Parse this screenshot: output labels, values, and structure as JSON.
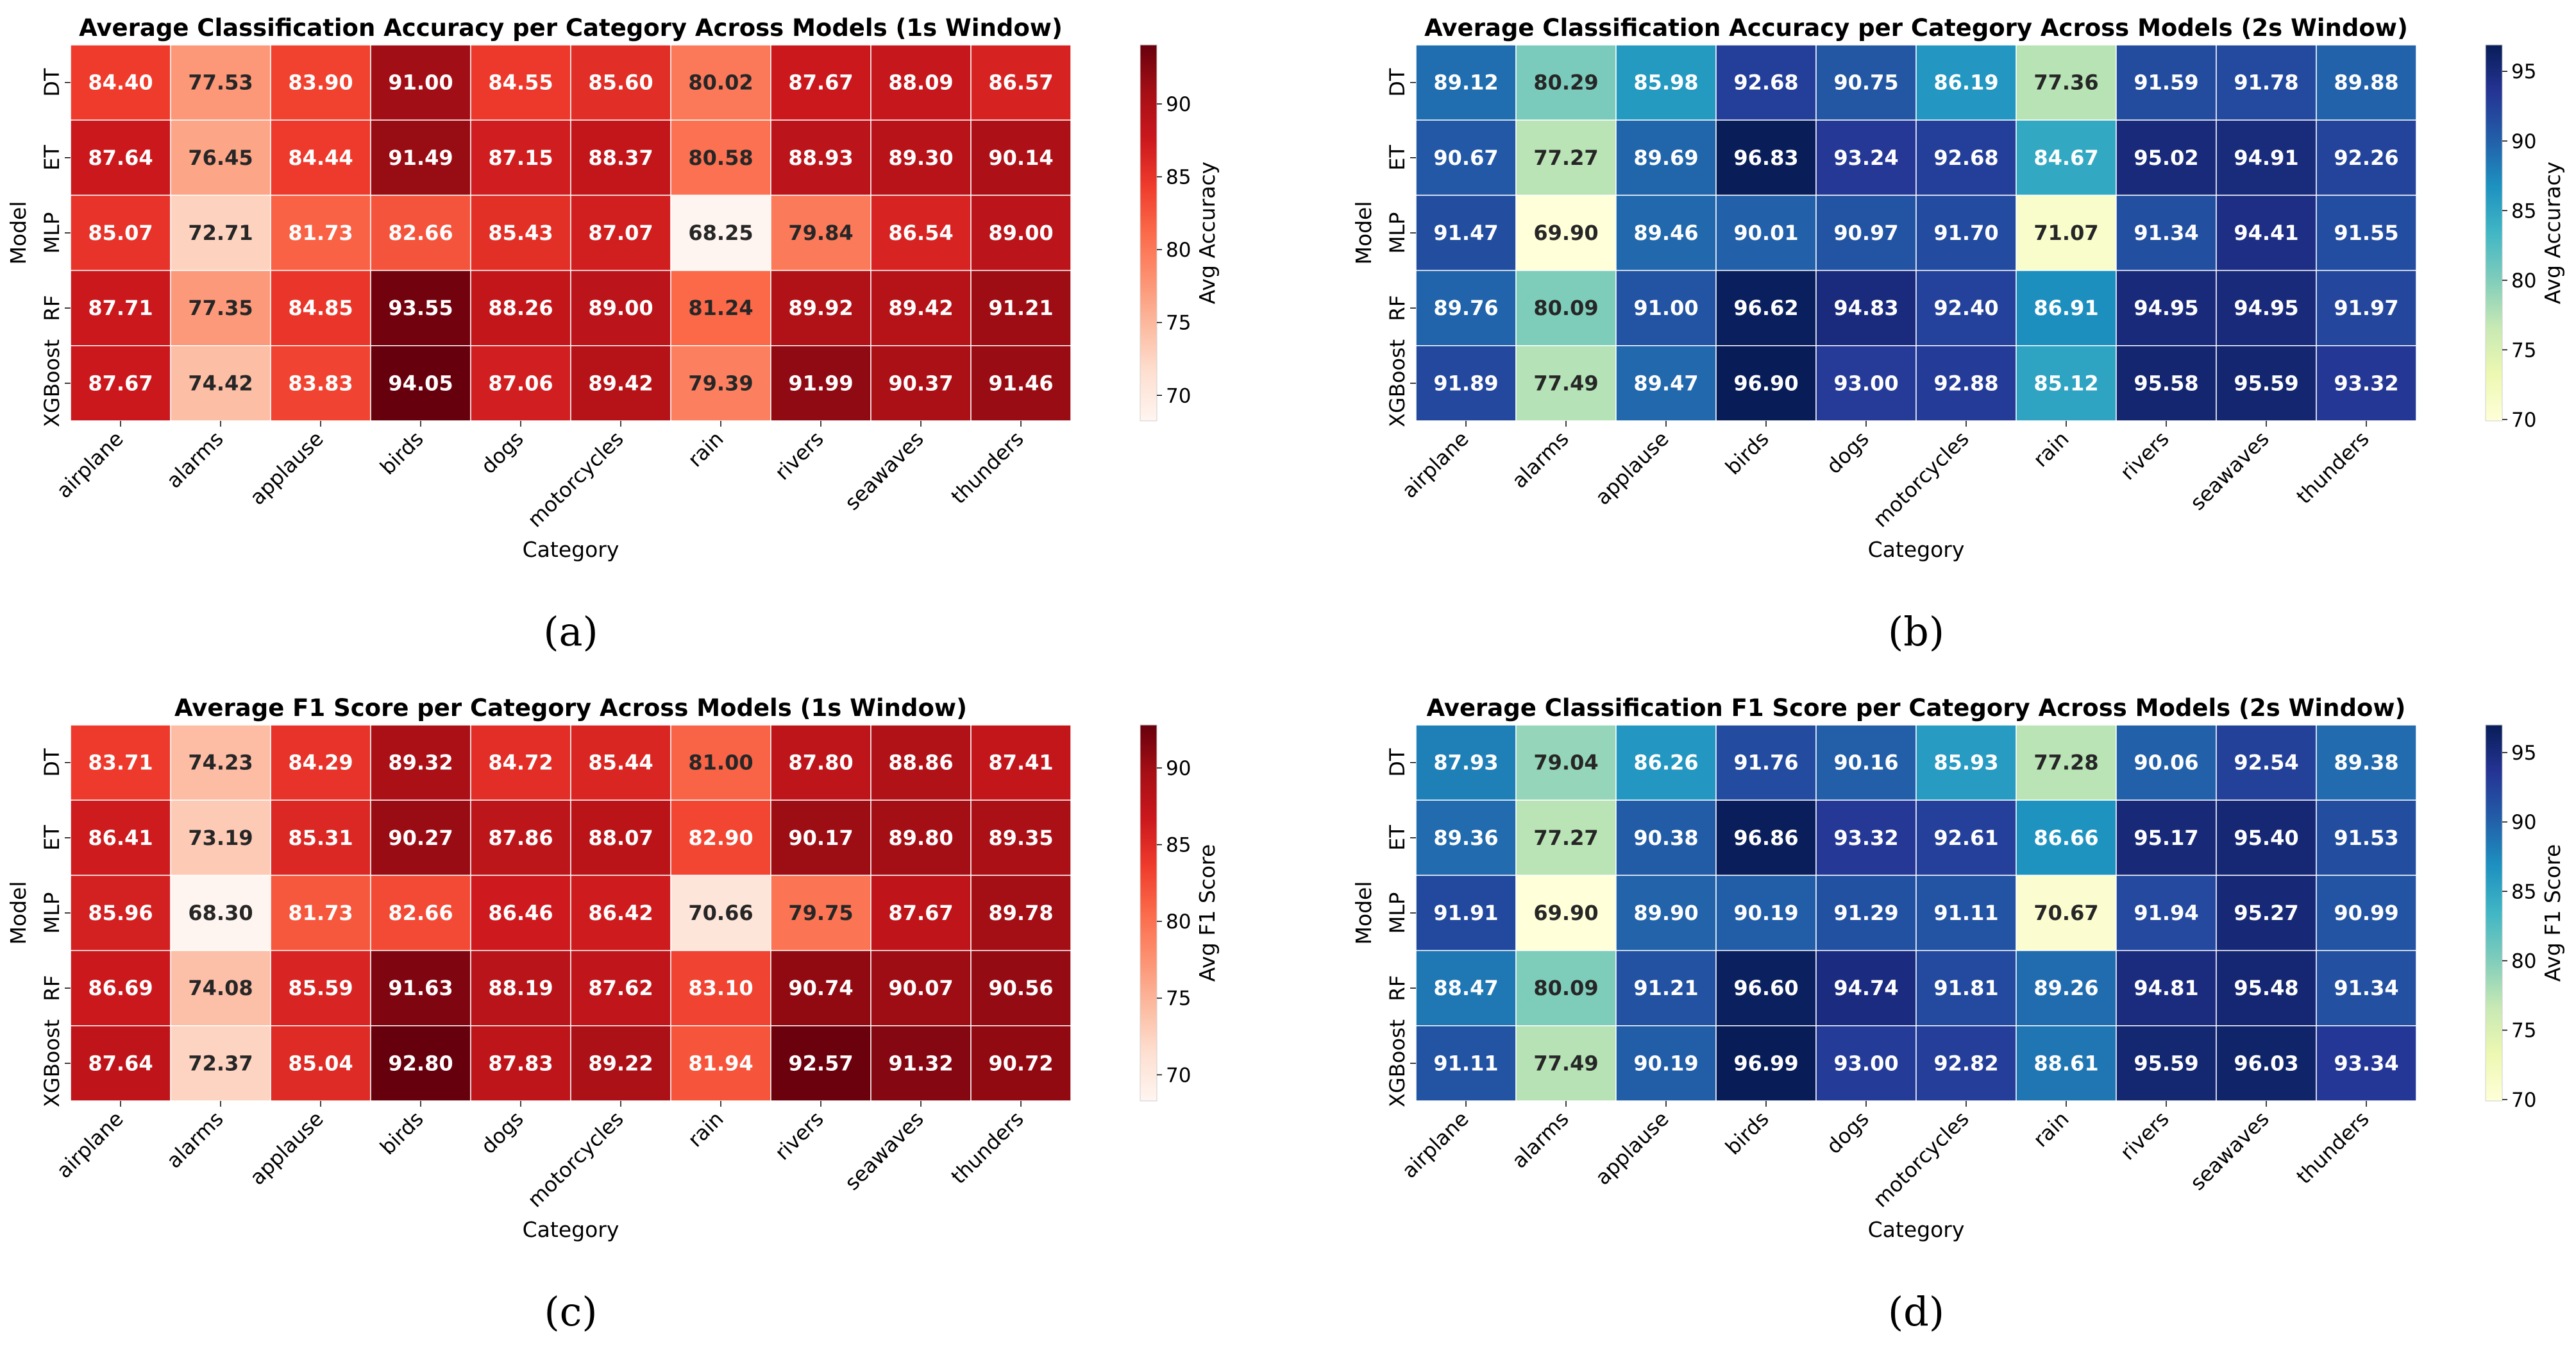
{
  "chart_data": [
    {
      "type": "heatmap",
      "panel_label": "(a)",
      "title": "Average Classification Accuracy per Category Across Models (1s Window)",
      "xlabel": "Category",
      "ylabel": "Model",
      "colorbar_label": "Avg Accuracy",
      "colormap": "Reds",
      "vmin": 68.25,
      "vmax": 94.05,
      "colorbar_ticks": [
        70,
        75,
        80,
        85,
        90
      ],
      "categories": [
        "airplane",
        "alarms",
        "applause",
        "birds",
        "dogs",
        "motorcycles",
        "rain",
        "rivers",
        "seawaves",
        "thunders"
      ],
      "models": [
        "DT",
        "ET",
        "MLP",
        "RF",
        "XGBoost"
      ],
      "values": [
        [
          84.4,
          77.53,
          83.9,
          91.0,
          84.55,
          85.6,
          80.02,
          87.67,
          88.09,
          86.57
        ],
        [
          87.64,
          76.45,
          84.44,
          91.49,
          87.15,
          88.37,
          80.58,
          88.93,
          89.3,
          90.14
        ],
        [
          85.07,
          72.71,
          81.73,
          82.66,
          85.43,
          87.07,
          68.25,
          79.84,
          86.54,
          89.0
        ],
        [
          87.71,
          77.35,
          84.85,
          93.55,
          88.26,
          89.0,
          81.24,
          89.92,
          89.42,
          91.21
        ],
        [
          87.67,
          74.42,
          83.83,
          94.05,
          87.06,
          89.42,
          79.39,
          91.99,
          90.37,
          91.46
        ]
      ]
    },
    {
      "type": "heatmap",
      "panel_label": "(b)",
      "title": "Average Classification Accuracy per Category Across Models (2s Window)",
      "xlabel": "Category",
      "ylabel": "Model",
      "colorbar_label": "Avg Accuracy",
      "colormap": "YlGnBu",
      "vmin": 69.9,
      "vmax": 96.9,
      "colorbar_ticks": [
        70,
        75,
        80,
        85,
        90,
        95
      ],
      "categories": [
        "airplane",
        "alarms",
        "applause",
        "birds",
        "dogs",
        "motorcycles",
        "rain",
        "rivers",
        "seawaves",
        "thunders"
      ],
      "models": [
        "DT",
        "ET",
        "MLP",
        "RF",
        "XGBoost"
      ],
      "values": [
        [
          89.12,
          80.29,
          85.98,
          92.68,
          90.75,
          86.19,
          77.36,
          91.59,
          91.78,
          89.88
        ],
        [
          90.67,
          77.27,
          89.69,
          96.83,
          93.24,
          92.68,
          84.67,
          95.02,
          94.91,
          92.26
        ],
        [
          91.47,
          69.9,
          89.46,
          90.01,
          90.97,
          91.7,
          71.07,
          91.34,
          94.41,
          91.55
        ],
        [
          89.76,
          80.09,
          91.0,
          96.62,
          94.83,
          92.4,
          86.91,
          94.95,
          94.95,
          91.97
        ],
        [
          91.89,
          77.49,
          89.47,
          96.9,
          93.0,
          92.88,
          85.12,
          95.58,
          95.59,
          93.32
        ]
      ]
    },
    {
      "type": "heatmap",
      "panel_label": "(c)",
      "title": "Average F1 Score per Category Across Models (1s Window)",
      "xlabel": "Category",
      "ylabel": "Model",
      "colorbar_label": "Avg F1 Score",
      "colormap": "Reds",
      "vmin": 68.3,
      "vmax": 92.8,
      "colorbar_ticks": [
        70,
        75,
        80,
        85,
        90
      ],
      "categories": [
        "airplane",
        "alarms",
        "applause",
        "birds",
        "dogs",
        "motorcycles",
        "rain",
        "rivers",
        "seawaves",
        "thunders"
      ],
      "models": [
        "DT",
        "ET",
        "MLP",
        "RF",
        "XGBoost"
      ],
      "values": [
        [
          83.71,
          74.23,
          84.29,
          89.32,
          84.72,
          85.44,
          81.0,
          87.8,
          88.86,
          87.41
        ],
        [
          86.41,
          73.19,
          85.31,
          90.27,
          87.86,
          88.07,
          82.9,
          90.17,
          89.8,
          89.35
        ],
        [
          85.96,
          68.3,
          81.73,
          82.66,
          86.46,
          86.42,
          70.66,
          79.75,
          87.67,
          89.78
        ],
        [
          86.69,
          74.08,
          85.59,
          91.63,
          88.19,
          87.62,
          83.1,
          90.74,
          90.07,
          90.56
        ],
        [
          87.64,
          72.37,
          85.04,
          92.8,
          87.83,
          89.22,
          81.94,
          92.57,
          91.32,
          90.72
        ]
      ]
    },
    {
      "type": "heatmap",
      "panel_label": "(d)",
      "title": "Average Classification F1 Score per Category Across Models (2s Window)",
      "xlabel": "Category",
      "ylabel": "Model",
      "colorbar_label": "Avg F1 Score",
      "colormap": "YlGnBu",
      "vmin": 69.9,
      "vmax": 96.99,
      "colorbar_ticks": [
        70,
        75,
        80,
        85,
        90,
        95
      ],
      "categories": [
        "airplane",
        "alarms",
        "applause",
        "birds",
        "dogs",
        "motorcycles",
        "rain",
        "rivers",
        "seawaves",
        "thunders"
      ],
      "models": [
        "DT",
        "ET",
        "MLP",
        "RF",
        "XGBoost"
      ],
      "values": [
        [
          87.93,
          79.04,
          86.26,
          91.76,
          90.16,
          85.93,
          77.28,
          90.06,
          92.54,
          89.38
        ],
        [
          89.36,
          77.27,
          90.38,
          96.86,
          93.32,
          92.61,
          86.66,
          95.17,
          95.4,
          91.53
        ],
        [
          91.91,
          69.9,
          89.9,
          90.19,
          91.29,
          91.11,
          70.67,
          91.94,
          95.27,
          90.99
        ],
        [
          88.47,
          80.09,
          91.21,
          96.6,
          94.74,
          91.81,
          89.26,
          94.81,
          95.48,
          91.34
        ],
        [
          91.11,
          77.49,
          90.19,
          96.99,
          93.0,
          92.82,
          88.61,
          95.59,
          96.03,
          93.34
        ]
      ]
    }
  ]
}
